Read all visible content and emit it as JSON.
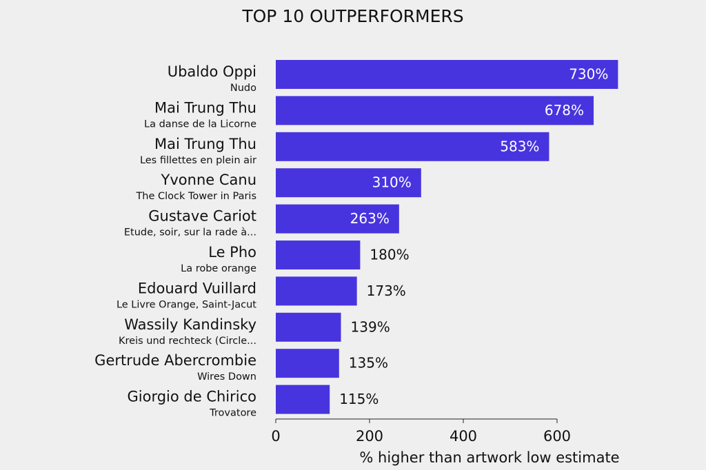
{
  "chart_data": {
    "type": "bar",
    "orientation": "horizontal",
    "title": "TOP 10 OUTPERFORMERS",
    "categories": [
      "Ubaldo Oppi",
      "Mai Trung Thu",
      "Mai Trung Thu",
      "Yvonne Canu",
      "Gustave Cariot",
      "Le Pho",
      "Edouard Vuillard",
      "Wassily Kandinsky",
      "Gertrude Abercrombie",
      "Giorgio de Chirico"
    ],
    "subtitles": [
      "Nudo",
      "La danse de la Licorne",
      "Les fillettes en plein air",
      "The Clock Tower in Paris",
      "Etude, soir, sur la rade à...",
      "La robe orange",
      "Le Livre Orange, Saint-Jacut",
      "Kreis und rechteck (Circle...",
      "Wires Down",
      "Trovatore"
    ],
    "values": [
      730,
      678,
      583,
      310,
      263,
      180,
      173,
      139,
      135,
      115
    ],
    "value_labels": [
      "730%",
      "678%",
      "583%",
      "310%",
      "263%",
      "180%",
      "173%",
      "139%",
      "135%",
      "115%"
    ],
    "color": "#4834df",
    "xlabel": "% higher than artwork low estimate",
    "xlim": [
      0,
      750
    ],
    "xticks": [
      0,
      200,
      400,
      600
    ],
    "grid": false
  }
}
